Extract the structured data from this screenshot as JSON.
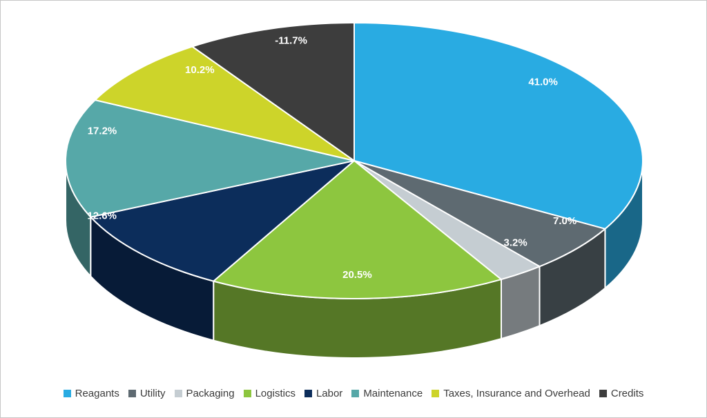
{
  "chart_data": {
    "type": "pie",
    "style": "3d",
    "title": "",
    "value_label_color": "#FFFFFF",
    "legend_position": "bottom",
    "slices": [
      {
        "label": "Reagants",
        "value": 41.0,
        "display": "41.0%",
        "color": "#29ABE2"
      },
      {
        "label": "Utility",
        "value": 7.0,
        "display": "7.0%",
        "color": "#5E6A71"
      },
      {
        "label": "Packaging",
        "value": 3.2,
        "display": "3.2%",
        "color": "#C5CDD2"
      },
      {
        "label": "Logistics",
        "value": 20.5,
        "display": "20.5%",
        "color": "#8DC63F"
      },
      {
        "label": "Labor",
        "value": 12.6,
        "display": "12.6%",
        "color": "#0C2D5B"
      },
      {
        "label": "Maintenance",
        "value": 17.2,
        "display": "17.2%",
        "color": "#56A8A8"
      },
      {
        "label": "Taxes, Insurance and Overhead",
        "value": 10.2,
        "display": "10.2%",
        "color": "#CDD42A"
      },
      {
        "label": "Credits",
        "value": -11.7,
        "display": "-11.7%",
        "color": "#3D3D3D"
      }
    ]
  }
}
